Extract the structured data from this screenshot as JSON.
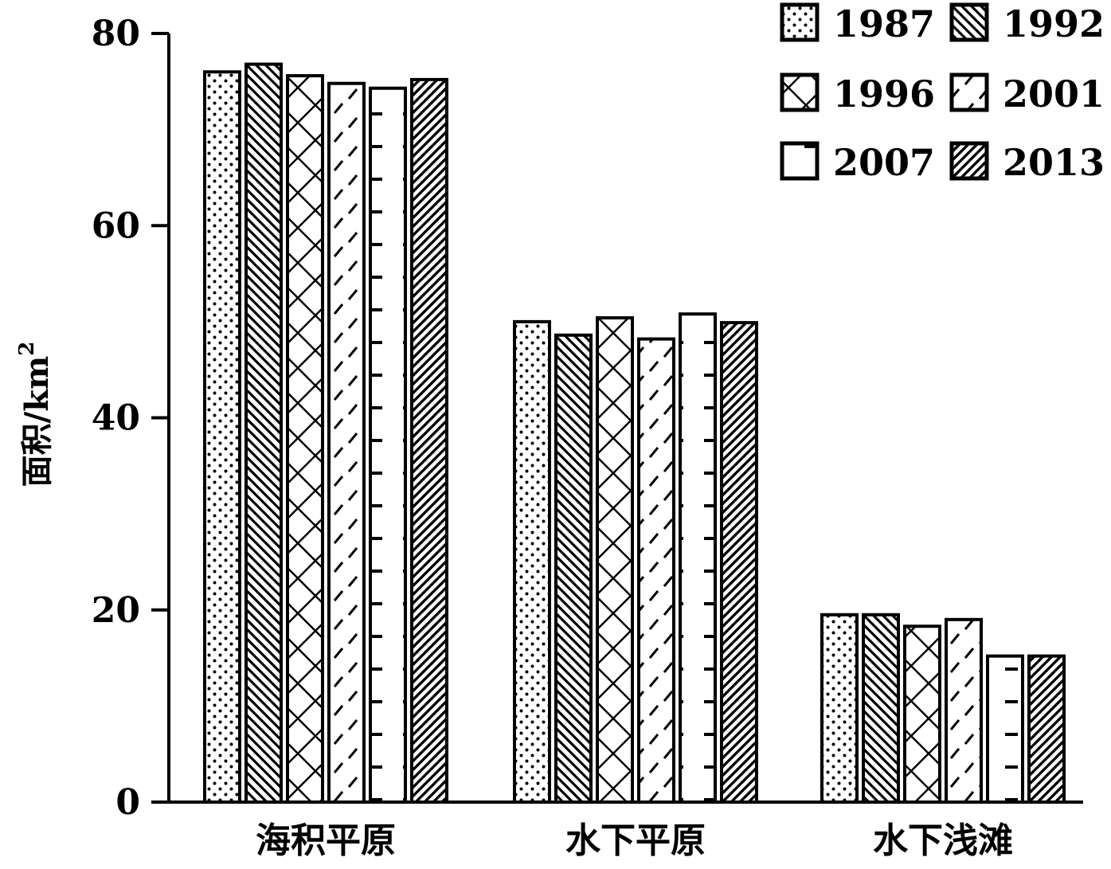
{
  "chart_data": {
    "type": "bar",
    "title": "",
    "xlabel": "",
    "ylabel": "面积/km",
    "ylabel_sup": "2",
    "ylim": [
      0,
      80
    ],
    "yticks": [
      0,
      20,
      40,
      60,
      80
    ],
    "categories": [
      "海积平原",
      "水下平原",
      "水下浅滩"
    ],
    "series": [
      {
        "name": "1987",
        "pattern": "dots",
        "values": [
          76.0,
          50.0,
          19.5
        ]
      },
      {
        "name": "1992",
        "pattern": "diag-back",
        "values": [
          76.8,
          48.6,
          19.5
        ]
      },
      {
        "name": "1996",
        "pattern": "cross",
        "values": [
          75.6,
          50.4,
          18.3
        ]
      },
      {
        "name": "2001",
        "pattern": "dashed-diag",
        "values": [
          74.8,
          48.2,
          19.0
        ]
      },
      {
        "name": "2007",
        "pattern": "dashes",
        "values": [
          74.3,
          50.8,
          15.2
        ]
      },
      {
        "name": "2013",
        "pattern": "diag-forward",
        "values": [
          75.2,
          49.9,
          15.2
        ]
      }
    ],
    "legend_position": "top-right",
    "grid": false
  }
}
